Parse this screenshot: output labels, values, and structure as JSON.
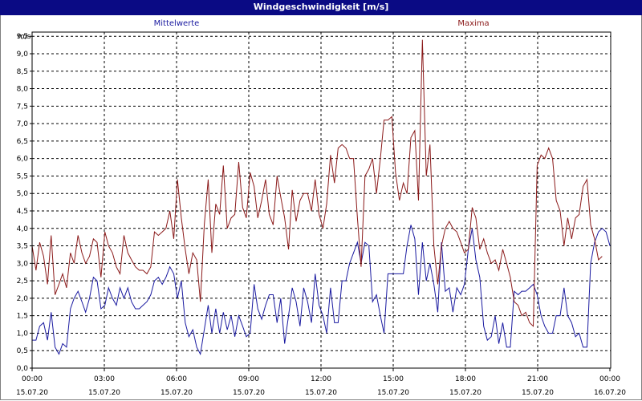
{
  "window": {
    "title": "Windgeschwindigkeit [m/s]"
  },
  "chart_data": {
    "type": "line",
    "ylabel": "m/s",
    "ylim": [
      0,
      10
    ],
    "yticks": [
      "0,0",
      "0,5",
      "1,0",
      "1,5",
      "2,0",
      "2,5",
      "3,0",
      "3,5",
      "4,0",
      "4,5",
      "5,0",
      "5,5",
      "6,0",
      "6,5",
      "7,0",
      "7,5",
      "8,0",
      "8,5",
      "9,0",
      "9,5"
    ],
    "xlim": [
      0,
      24
    ],
    "xticks": [
      {
        "time": "00:00",
        "date": "15.07.20"
      },
      {
        "time": "03:00",
        "date": "15.07.20"
      },
      {
        "time": "06:00",
        "date": "15.07.20"
      },
      {
        "time": "09:00",
        "date": "15.07.20"
      },
      {
        "time": "12:00",
        "date": "15.07.20"
      },
      {
        "time": "15:00",
        "date": "15.07.20"
      },
      {
        "time": "18:00",
        "date": "15.07.20"
      },
      {
        "time": "21:00",
        "date": "15.07.20"
      },
      {
        "time": "00:00",
        "date": "16.07.20"
      }
    ],
    "grid": true,
    "series": [
      {
        "name": "Mittelwerte",
        "color": "#1a1aa0",
        "points": [
          [
            0,
            0.8
          ],
          [
            0.17,
            0.8
          ],
          [
            0.33,
            1.2
          ],
          [
            0.5,
            1.3
          ],
          [
            0.67,
            0.8
          ],
          [
            0.83,
            1.6
          ],
          [
            1.0,
            0.6
          ],
          [
            1.17,
            0.4
          ],
          [
            1.33,
            0.7
          ],
          [
            1.5,
            0.6
          ],
          [
            1.67,
            1.7
          ],
          [
            1.83,
            2.0
          ],
          [
            2.0,
            2.2
          ],
          [
            2.17,
            1.9
          ],
          [
            2.33,
            1.6
          ],
          [
            2.5,
            2.0
          ],
          [
            2.67,
            2.6
          ],
          [
            2.83,
            2.5
          ],
          [
            3.0,
            1.7
          ],
          [
            3.17,
            1.8
          ],
          [
            3.33,
            2.3
          ],
          [
            3.5,
            2.0
          ],
          [
            3.67,
            1.8
          ],
          [
            3.83,
            2.3
          ],
          [
            4.0,
            2.0
          ],
          [
            4.17,
            2.3
          ],
          [
            4.33,
            1.9
          ],
          [
            4.5,
            1.7
          ],
          [
            4.67,
            1.7
          ],
          [
            4.83,
            1.8
          ],
          [
            5.0,
            1.9
          ],
          [
            5.17,
            2.1
          ],
          [
            5.33,
            2.5
          ],
          [
            5.5,
            2.6
          ],
          [
            5.67,
            2.4
          ],
          [
            5.83,
            2.6
          ],
          [
            6.0,
            2.9
          ],
          [
            6.17,
            2.7
          ],
          [
            6.33,
            2.0
          ],
          [
            6.5,
            2.5
          ],
          [
            6.67,
            1.3
          ],
          [
            6.83,
            0.9
          ],
          [
            7.0,
            1.1
          ],
          [
            7.17,
            0.6
          ],
          [
            7.33,
            0.4
          ],
          [
            7.5,
            1.1
          ],
          [
            7.67,
            1.8
          ],
          [
            7.83,
            1.0
          ],
          [
            8.0,
            1.7
          ],
          [
            8.17,
            1.0
          ],
          [
            8.33,
            1.6
          ],
          [
            8.5,
            1.1
          ],
          [
            8.67,
            1.5
          ],
          [
            8.83,
            0.9
          ],
          [
            9.0,
            1.5
          ],
          [
            9.17,
            1.2
          ],
          [
            9.33,
            0.9
          ],
          [
            9.5,
            1.0
          ],
          [
            9.67,
            2.4
          ],
          [
            9.83,
            1.7
          ],
          [
            10.0,
            1.4
          ],
          [
            10.17,
            1.8
          ],
          [
            10.33,
            2.1
          ],
          [
            10.5,
            2.1
          ],
          [
            10.67,
            1.3
          ],
          [
            10.83,
            2.0
          ],
          [
            11.0,
            0.7
          ],
          [
            11.17,
            1.5
          ],
          [
            11.33,
            2.3
          ],
          [
            11.5,
            1.9
          ],
          [
            11.67,
            1.2
          ],
          [
            11.83,
            2.3
          ],
          [
            12.0,
            1.9
          ],
          [
            12.17,
            1.3
          ],
          [
            12.33,
            2.7
          ],
          [
            12.5,
            1.8
          ],
          [
            12.67,
            1.5
          ],
          [
            12.83,
            1.0
          ],
          [
            13.0,
            2.3
          ],
          [
            13.17,
            1.3
          ],
          [
            13.33,
            1.3
          ],
          [
            13.5,
            2.5
          ],
          [
            13.67,
            2.5
          ],
          [
            13.83,
            3.0
          ],
          [
            14.0,
            3.3
          ],
          [
            14.17,
            3.6
          ],
          [
            14.33,
            3.0
          ],
          [
            14.5,
            3.6
          ],
          [
            14.67,
            3.5
          ],
          [
            14.83,
            1.9
          ],
          [
            15.0,
            2.1
          ],
          [
            15.17,
            1.5
          ],
          [
            15.33,
            1.0
          ],
          [
            15.5,
            2.7
          ],
          [
            15.67,
            2.7
          ],
          [
            15.83,
            2.7
          ],
          [
            16.0,
            2.7
          ],
          [
            16.17,
            2.7
          ],
          [
            16.33,
            3.5
          ],
          [
            16.5,
            4.1
          ],
          [
            16.67,
            3.7
          ],
          [
            16.83,
            2.1
          ],
          [
            17.0,
            3.6
          ],
          [
            17.17,
            2.5
          ],
          [
            17.33,
            3.0
          ],
          [
            17.5,
            2.4
          ],
          [
            17.67,
            1.6
          ],
          [
            17.83,
            3.6
          ],
          [
            18.0,
            2.2
          ],
          [
            18.17,
            2.3
          ],
          [
            18.33,
            1.6
          ],
          [
            18.5,
            2.3
          ],
          [
            18.67,
            2.1
          ],
          [
            18.83,
            2.4
          ],
          [
            19.0,
            3.4
          ],
          [
            19.17,
            4.0
          ],
          [
            19.33,
            3.1
          ],
          [
            19.5,
            2.6
          ],
          [
            19.67,
            1.2
          ],
          [
            19.83,
            0.8
          ],
          [
            20.0,
            0.9
          ],
          [
            20.17,
            1.5
          ],
          [
            20.33,
            0.7
          ],
          [
            20.5,
            1.3
          ],
          [
            20.67,
            0.6
          ],
          [
            20.83,
            0.6
          ],
          [
            21.0,
            2.2
          ],
          [
            21.17,
            2.1
          ],
          [
            21.33,
            2.2
          ],
          [
            21.5,
            2.2
          ],
          [
            21.67,
            2.3
          ],
          [
            21.83,
            2.4
          ],
          [
            22.0,
            2.1
          ],
          [
            22.17,
            1.5
          ],
          [
            22.33,
            1.2
          ],
          [
            22.5,
            1.0
          ],
          [
            22.67,
            1.0
          ],
          [
            22.83,
            1.5
          ],
          [
            23.0,
            1.5
          ],
          [
            23.17,
            2.3
          ],
          [
            23.33,
            1.5
          ],
          [
            23.5,
            1.3
          ],
          [
            23.67,
            0.9
          ],
          [
            23.83,
            1.0
          ],
          [
            24.0,
            0.6
          ],
          [
            24.17,
            0.6
          ],
          [
            24.33,
            3.0
          ],
          [
            24.5,
            3.6
          ],
          [
            24.67,
            3.9
          ],
          [
            24.83,
            4.0
          ],
          [
            25.0,
            3.9
          ],
          [
            25.17,
            3.5
          ]
        ]
      },
      {
        "name": "Maxima",
        "color": "#8b1a1a",
        "points": [
          [
            0,
            3.5
          ],
          [
            0.17,
            2.8
          ],
          [
            0.33,
            3.6
          ],
          [
            0.5,
            3.2
          ],
          [
            0.67,
            2.4
          ],
          [
            0.83,
            3.8
          ],
          [
            1.0,
            2.1
          ],
          [
            1.17,
            2.4
          ],
          [
            1.33,
            2.7
          ],
          [
            1.5,
            2.3
          ],
          [
            1.67,
            3.3
          ],
          [
            1.83,
            3.0
          ],
          [
            2.0,
            3.8
          ],
          [
            2.17,
            3.3
          ],
          [
            2.33,
            3.0
          ],
          [
            2.5,
            3.2
          ],
          [
            2.67,
            3.7
          ],
          [
            2.83,
            3.6
          ],
          [
            3.0,
            2.6
          ],
          [
            3.17,
            3.9
          ],
          [
            3.33,
            3.5
          ],
          [
            3.5,
            3.3
          ],
          [
            3.67,
            2.9
          ],
          [
            3.83,
            2.7
          ],
          [
            4.0,
            3.8
          ],
          [
            4.17,
            3.3
          ],
          [
            4.33,
            3.1
          ],
          [
            4.5,
            2.9
          ],
          [
            4.67,
            2.8
          ],
          [
            4.83,
            2.8
          ],
          [
            5.0,
            2.7
          ],
          [
            5.17,
            2.9
          ],
          [
            5.33,
            3.9
          ],
          [
            5.5,
            3.8
          ],
          [
            5.67,
            3.9
          ],
          [
            5.83,
            4.0
          ],
          [
            6.0,
            4.5
          ],
          [
            6.17,
            3.7
          ],
          [
            6.33,
            5.4
          ],
          [
            6.5,
            4.3
          ],
          [
            6.67,
            3.4
          ],
          [
            6.83,
            2.7
          ],
          [
            7.0,
            3.3
          ],
          [
            7.17,
            3.1
          ],
          [
            7.33,
            1.9
          ],
          [
            7.5,
            4.1
          ],
          [
            7.67,
            5.4
          ],
          [
            7.83,
            3.3
          ],
          [
            8.0,
            4.7
          ],
          [
            8.17,
            4.4
          ],
          [
            8.33,
            5.8
          ],
          [
            8.5,
            4.0
          ],
          [
            8.67,
            4.3
          ],
          [
            8.83,
            4.4
          ],
          [
            9.0,
            5.9
          ],
          [
            9.17,
            4.6
          ],
          [
            9.33,
            4.3
          ],
          [
            9.5,
            5.6
          ],
          [
            9.67,
            5.2
          ],
          [
            9.83,
            4.3
          ],
          [
            10.0,
            4.8
          ],
          [
            10.17,
            5.4
          ],
          [
            10.33,
            4.4
          ],
          [
            10.5,
            4.1
          ],
          [
            10.67,
            5.5
          ],
          [
            10.83,
            4.9
          ],
          [
            11.0,
            4.3
          ],
          [
            11.17,
            3.4
          ],
          [
            11.33,
            5.1
          ],
          [
            11.5,
            4.2
          ],
          [
            11.67,
            4.8
          ],
          [
            11.83,
            5.0
          ],
          [
            12.0,
            5.0
          ],
          [
            12.17,
            4.5
          ],
          [
            12.33,
            5.4
          ],
          [
            12.5,
            4.4
          ],
          [
            12.67,
            4.0
          ],
          [
            12.83,
            4.7
          ],
          [
            13.0,
            6.1
          ],
          [
            13.17,
            5.3
          ],
          [
            13.33,
            6.3
          ],
          [
            13.5,
            6.4
          ],
          [
            13.67,
            6.3
          ],
          [
            13.83,
            6.0
          ],
          [
            14.0,
            6.0
          ],
          [
            14.17,
            4.3
          ],
          [
            14.33,
            2.9
          ],
          [
            14.5,
            5.5
          ],
          [
            14.67,
            5.7
          ],
          [
            14.83,
            6.0
          ],
          [
            15.0,
            5.0
          ],
          [
            15.17,
            6.0
          ],
          [
            15.33,
            7.1
          ],
          [
            15.5,
            7.1
          ],
          [
            15.67,
            7.2
          ],
          [
            15.83,
            5.6
          ],
          [
            16.0,
            4.8
          ],
          [
            16.17,
            5.3
          ],
          [
            16.33,
            5.0
          ],
          [
            16.5,
            6.6
          ],
          [
            16.67,
            6.8
          ],
          [
            16.83,
            4.8
          ],
          [
            17.0,
            9.4
          ],
          [
            17.17,
            5.5
          ],
          [
            17.33,
            6.4
          ],
          [
            17.5,
            3.5
          ],
          [
            17.67,
            2.4
          ],
          [
            17.83,
            3.5
          ],
          [
            18.0,
            4.0
          ],
          [
            18.17,
            4.2
          ],
          [
            18.33,
            4.0
          ],
          [
            18.5,
            3.9
          ],
          [
            18.67,
            3.6
          ],
          [
            18.83,
            3.3
          ],
          [
            19.0,
            3.4
          ],
          [
            19.17,
            4.6
          ],
          [
            19.33,
            4.3
          ],
          [
            19.5,
            3.4
          ],
          [
            19.67,
            3.7
          ],
          [
            19.83,
            3.3
          ],
          [
            20.0,
            3.0
          ],
          [
            20.17,
            3.1
          ],
          [
            20.33,
            2.8
          ],
          [
            20.5,
            3.4
          ],
          [
            20.67,
            3.0
          ],
          [
            20.83,
            2.6
          ],
          [
            21.0,
            1.9
          ],
          [
            21.17,
            1.8
          ],
          [
            21.33,
            1.5
          ],
          [
            21.5,
            1.6
          ],
          [
            21.67,
            1.3
          ],
          [
            21.83,
            1.2
          ],
          [
            22.0,
            5.8
          ],
          [
            22.17,
            6.1
          ],
          [
            22.33,
            6.0
          ],
          [
            22.5,
            6.3
          ],
          [
            22.67,
            6.0
          ],
          [
            22.83,
            4.8
          ],
          [
            23.0,
            4.5
          ],
          [
            23.17,
            3.5
          ],
          [
            23.33,
            4.3
          ],
          [
            23.5,
            3.7
          ],
          [
            23.67,
            4.3
          ],
          [
            23.83,
            4.4
          ],
          [
            24.0,
            5.2
          ],
          [
            24.17,
            5.4
          ],
          [
            24.33,
            4.1
          ],
          [
            24.5,
            3.7
          ],
          [
            24.67,
            3.1
          ],
          [
            24.83,
            3.2
          ]
        ]
      }
    ]
  }
}
